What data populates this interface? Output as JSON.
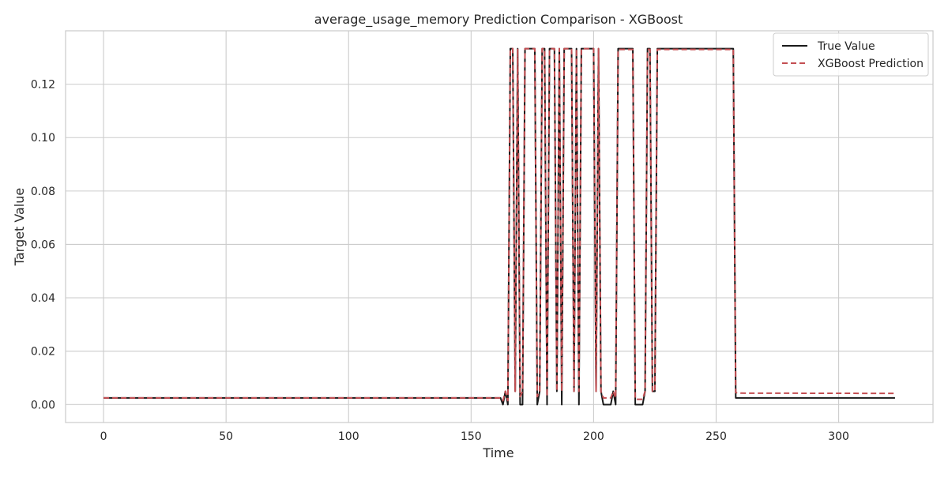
{
  "chart_data": {
    "type": "line",
    "title": "average_usage_memory Prediction Comparison - XGBoost",
    "xlabel": "Time",
    "ylabel": "Target Value",
    "xlim": [
      -15.5,
      338.5
    ],
    "ylim": [
      -0.0067,
      0.14
    ],
    "x_ticks": [
      0,
      50,
      100,
      150,
      200,
      250,
      300
    ],
    "x_tick_labels": [
      "0",
      "50",
      "100",
      "150",
      "200",
      "250",
      "300"
    ],
    "y_ticks": [
      0.0,
      0.02,
      0.04,
      0.06,
      0.08,
      0.1,
      0.12
    ],
    "y_tick_labels": [
      "0.00",
      "0.02",
      "0.04",
      "0.06",
      "0.08",
      "0.10",
      "0.12"
    ],
    "grid": true,
    "legend_position": "top-right",
    "series": [
      {
        "name": "True Value",
        "color": "#1a1a1a",
        "style": "solid",
        "points": [
          [
            0,
            0.0025
          ],
          [
            161,
            0.0025
          ],
          [
            162,
            0.0025
          ],
          [
            163,
            0.0
          ],
          [
            164,
            0.005
          ],
          [
            165,
            0.0
          ],
          [
            166,
            0.1333
          ],
          [
            167,
            0.1333
          ],
          [
            168,
            0.005
          ],
          [
            169,
            0.1333
          ],
          [
            170,
            0.0
          ],
          [
            171,
            0.0
          ],
          [
            172,
            0.1333
          ],
          [
            176,
            0.1333
          ],
          [
            177,
            0.0
          ],
          [
            178,
            0.005
          ],
          [
            179,
            0.1333
          ],
          [
            180,
            0.1333
          ],
          [
            181,
            0.0
          ],
          [
            182,
            0.1333
          ],
          [
            184,
            0.1333
          ],
          [
            185,
            0.005
          ],
          [
            186,
            0.1333
          ],
          [
            187,
            0.0
          ],
          [
            188,
            0.1333
          ],
          [
            189,
            0.1333
          ],
          [
            190,
            0.1333
          ],
          [
            191,
            0.1333
          ],
          [
            192,
            0.005
          ],
          [
            193,
            0.1333
          ],
          [
            194,
            0.0
          ],
          [
            195,
            0.1333
          ],
          [
            197,
            0.1333
          ],
          [
            198,
            0.1333
          ],
          [
            199,
            0.1333
          ],
          [
            200,
            0.1333
          ],
          [
            201,
            0.005
          ],
          [
            202,
            0.1333
          ],
          [
            203,
            0.005
          ],
          [
            204,
            0.0
          ],
          [
            207,
            0.0
          ],
          [
            208,
            0.005
          ],
          [
            209,
            0.0
          ],
          [
            210,
            0.1333
          ],
          [
            216,
            0.1333
          ],
          [
            217,
            0.0
          ],
          [
            220,
            0.0
          ],
          [
            221,
            0.005
          ],
          [
            222,
            0.1333
          ],
          [
            223,
            0.1333
          ],
          [
            224,
            0.005
          ],
          [
            225,
            0.005
          ],
          [
            226,
            0.1333
          ],
          [
            257,
            0.1333
          ],
          [
            258,
            0.0025
          ],
          [
            323,
            0.0025
          ]
        ]
      },
      {
        "name": "XGBoost Prediction",
        "color": "#c44e52",
        "style": "dashed",
        "points": [
          [
            0,
            0.0025
          ],
          [
            161,
            0.0025
          ],
          [
            162,
            0.0025
          ],
          [
            163,
            0.0015
          ],
          [
            164,
            0.005
          ],
          [
            165,
            0.0015
          ],
          [
            166,
            0.1333
          ],
          [
            167,
            0.1333
          ],
          [
            168,
            0.005
          ],
          [
            169,
            0.1333
          ],
          [
            170,
            0.003
          ],
          [
            171,
            0.005
          ],
          [
            172,
            0.1333
          ],
          [
            176,
            0.1333
          ],
          [
            177,
            0.003
          ],
          [
            178,
            0.005
          ],
          [
            179,
            0.1333
          ],
          [
            180,
            0.1333
          ],
          [
            181,
            0.003
          ],
          [
            182,
            0.1333
          ],
          [
            184,
            0.1333
          ],
          [
            185,
            0.005
          ],
          [
            186,
            0.1333
          ],
          [
            187,
            0.005
          ],
          [
            188,
            0.1333
          ],
          [
            189,
            0.1333
          ],
          [
            190,
            0.1333
          ],
          [
            191,
            0.1333
          ],
          [
            192,
            0.005
          ],
          [
            193,
            0.1333
          ],
          [
            194,
            0.005
          ],
          [
            195,
            0.1333
          ],
          [
            197,
            0.1333
          ],
          [
            198,
            0.1333
          ],
          [
            199,
            0.1333
          ],
          [
            200,
            0.1333
          ],
          [
            201,
            0.005
          ],
          [
            202,
            0.1333
          ],
          [
            203,
            0.005
          ],
          [
            204,
            0.0025
          ],
          [
            207,
            0.0025
          ],
          [
            208,
            0.005
          ],
          [
            209,
            0.0025
          ],
          [
            210,
            0.133
          ],
          [
            216,
            0.133
          ],
          [
            217,
            0.002
          ],
          [
            220,
            0.002
          ],
          [
            221,
            0.005
          ],
          [
            222,
            0.133
          ],
          [
            223,
            0.133
          ],
          [
            224,
            0.005
          ],
          [
            225,
            0.005
          ],
          [
            226,
            0.133
          ],
          [
            257,
            0.133
          ],
          [
            258,
            0.0045
          ],
          [
            260,
            0.0043
          ],
          [
            323,
            0.0042
          ]
        ]
      }
    ]
  }
}
